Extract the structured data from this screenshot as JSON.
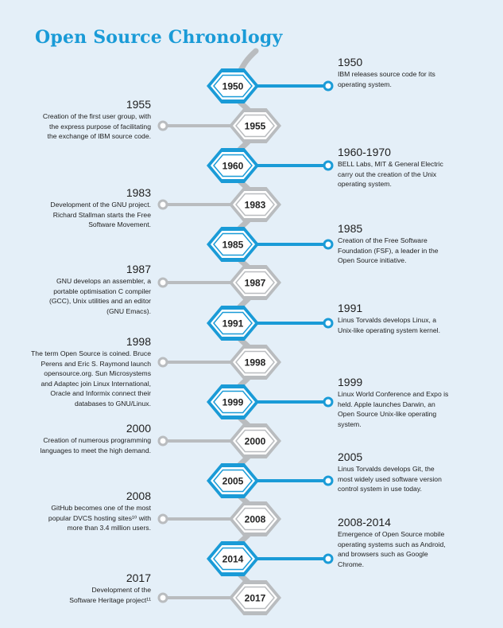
{
  "title": "Open Source Chronology",
  "colors": {
    "accent": "#1a9bd7",
    "grey": "#b9bcbf",
    "background": "#e4eff8"
  },
  "events": [
    {
      "node": "1950",
      "year": "1950",
      "side": "right",
      "lines": [
        "IBM releases source code for its",
        "operating system."
      ]
    },
    {
      "node": "1955",
      "year": "1955",
      "side": "left",
      "lines": [
        "Creation of the first user group, with",
        "the express purpose of facilitating",
        "the exchange of IBM source code."
      ]
    },
    {
      "node": "1960",
      "year": "1960-1970",
      "side": "right",
      "lines": [
        "BELL Labs, MIT & General Electric",
        "carry out the creation of the Unix",
        "operating system."
      ]
    },
    {
      "node": "1983",
      "year": "1983",
      "side": "left",
      "lines": [
        "Development of the GNU project.",
        "Richard Stallman starts the Free",
        "Software Movement."
      ]
    },
    {
      "node": "1985",
      "year": "1985",
      "side": "right",
      "lines": [
        "Creation of the Free Software",
        "Foundation (FSF), a leader in the",
        "Open Source initiative."
      ]
    },
    {
      "node": "1987",
      "year": "1987",
      "side": "left",
      "lines": [
        "GNU develops an assembler, a",
        "portable optimisation C compiler",
        "(GCC), Unix utilities and an editor",
        "(GNU Emacs)."
      ]
    },
    {
      "node": "1991",
      "year": "1991",
      "side": "right",
      "lines": [
        "Linus Torvalds develops Linux, a",
        "Unix-like operating system kernel."
      ]
    },
    {
      "node": "1998",
      "year": "1998",
      "side": "left",
      "lines": [
        "The term Open Source is coined. Bruce",
        "Perens and Eric S. Raymond launch",
        "opensource.org. Sun Microsystems",
        "and Adaptec join Linux International,",
        "Oracle and Informix connect their",
        "databases to GNU/Linux."
      ]
    },
    {
      "node": "1999",
      "year": "1999",
      "side": "right",
      "lines": [
        "Linux World Conference and Expo is",
        "held. Apple launches Darwin, an",
        "Open Source Unix-like operating",
        "system."
      ]
    },
    {
      "node": "2000",
      "year": "2000",
      "side": "left",
      "lines": [
        "Creation of numerous programming",
        "languages to meet the high demand."
      ]
    },
    {
      "node": "2005",
      "year": "2005",
      "side": "right",
      "lines": [
        "Linus Torvalds develops Git, the",
        "most widely used software version",
        "control system in use today."
      ]
    },
    {
      "node": "2008",
      "year": "2008",
      "side": "left",
      "lines": [
        "GitHub becomes one of the most",
        "popular DVCS hosting sites¹⁰ with",
        "more than 3.4 million users."
      ]
    },
    {
      "node": "2014",
      "year": "2008-2014",
      "side": "right",
      "lines": [
        "Emergence of Open Source mobile",
        "operating systems such as Android,",
        "and browsers such as Google",
        "Chrome."
      ]
    },
    {
      "node": "2017",
      "year": "2017",
      "side": "left",
      "lines": [
        "Development of the",
        "Software Heritage project¹¹"
      ]
    }
  ]
}
